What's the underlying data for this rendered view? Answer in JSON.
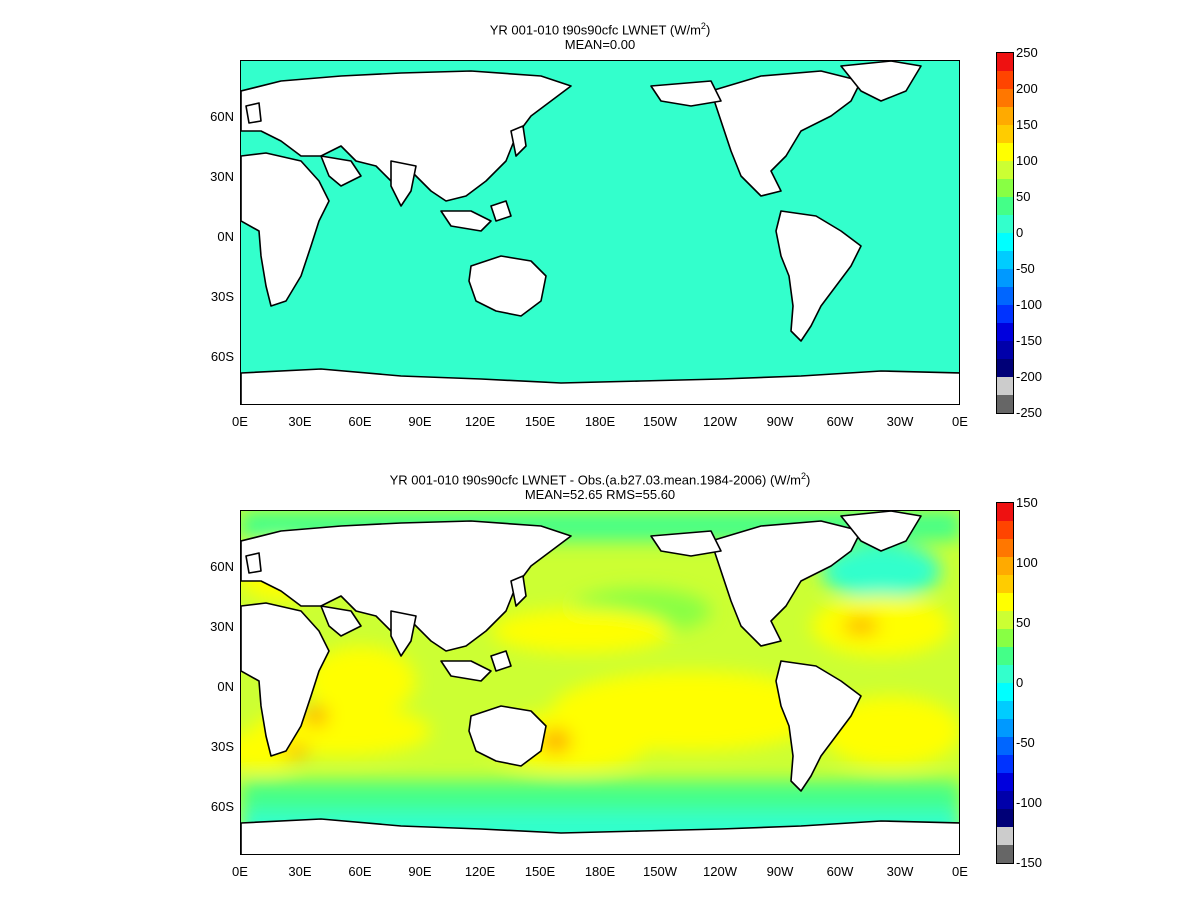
{
  "top": {
    "title_prefix": "YR 001-010 t90s90cfc  LWNET (W/m",
    "title_exp": "2",
    "title_suffix": ")",
    "subtitle": "MEAN=0.00",
    "ocean_color": "#33ffcc",
    "colorbar": {
      "labels": [
        "250",
        "200",
        "150",
        "100",
        "50",
        "0",
        "-50",
        "-100",
        "-150",
        "-200",
        "-250"
      ],
      "colors": [
        "#ee1111",
        "#ff4400",
        "#ff7700",
        "#ffaa00",
        "#ffcc00",
        "#ffff00",
        "#ccff33",
        "#88ff44",
        "#44ff88",
        "#33ffcc",
        "#00ffff",
        "#00ccff",
        "#0099ff",
        "#0066ff",
        "#0033ff",
        "#0000dd",
        "#0000aa",
        "#000077",
        "#cccccc",
        "#666666"
      ]
    }
  },
  "bottom": {
    "title_prefix": "YR 001-010 t90s90cfc LWNET - Obs.(a.b27.03.mean.1984-2006) (W/m",
    "title_exp": "2",
    "title_suffix": ")",
    "subtitle": "MEAN=52.65 RMS=55.60",
    "colorbar": {
      "labels": [
        "150",
        "100",
        "50",
        "0",
        "-50",
        "-100",
        "-150"
      ],
      "colors": [
        "#ee1111",
        "#ff4400",
        "#ff7700",
        "#ffaa00",
        "#ffcc00",
        "#ffff00",
        "#ccff33",
        "#88ff44",
        "#44ff88",
        "#33ffcc",
        "#00ffff",
        "#00ccff",
        "#0099ff",
        "#0066ff",
        "#0033ff",
        "#0000dd",
        "#0000aa",
        "#000077",
        "#cccccc",
        "#666666"
      ]
    }
  },
  "axes": {
    "x_ticks": [
      "0E",
      "30E",
      "60E",
      "90E",
      "120E",
      "150E",
      "180E",
      "150W",
      "120W",
      "90W",
      "60W",
      "30W",
      "0E"
    ],
    "y_ticks": [
      "60N",
      "30N",
      "0N",
      "30S",
      "60S"
    ]
  },
  "field_colors": {
    "high": "#ffff00",
    "mid": "#ccff33",
    "low": "#88ff44",
    "near_zero": "#33ffcc",
    "peak": "#ffaa00"
  }
}
